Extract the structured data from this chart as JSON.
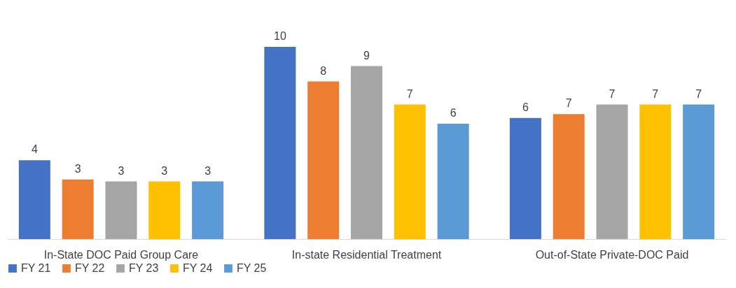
{
  "chart_data": {
    "type": "bar",
    "categories": [
      "In-State DOC Paid Group Care",
      "In-state Residential Treatment",
      "Out-of-State Private-DOC Paid"
    ],
    "legend": "bottom",
    "series": [
      {
        "name": "FY 21",
        "color": "#4472c4",
        "values": [
          4.1,
          10,
          6.3
        ],
        "value_labels": [
          "4",
          "10",
          "6"
        ]
      },
      {
        "name": "FY 22",
        "color": "#ed7d31",
        "values": [
          3.1,
          8.2,
          6.5
        ],
        "value_labels": [
          "3",
          "8",
          "7"
        ]
      },
      {
        "name": "FY 23",
        "color": "#a5a5a5",
        "values": [
          3.0,
          9.0,
          7.0
        ],
        "value_labels": [
          "3",
          "9",
          "7"
        ]
      },
      {
        "name": "FY 24",
        "color": "#ffc000",
        "values": [
          3.0,
          7.0,
          7.0
        ],
        "value_labels": [
          "3",
          "7",
          "7"
        ]
      },
      {
        "name": "FY 25",
        "color": "#5b9bd5",
        "values": [
          3.0,
          6.0,
          7.0
        ],
        "value_labels": [
          "3",
          "6",
          "7"
        ]
      }
    ]
  }
}
